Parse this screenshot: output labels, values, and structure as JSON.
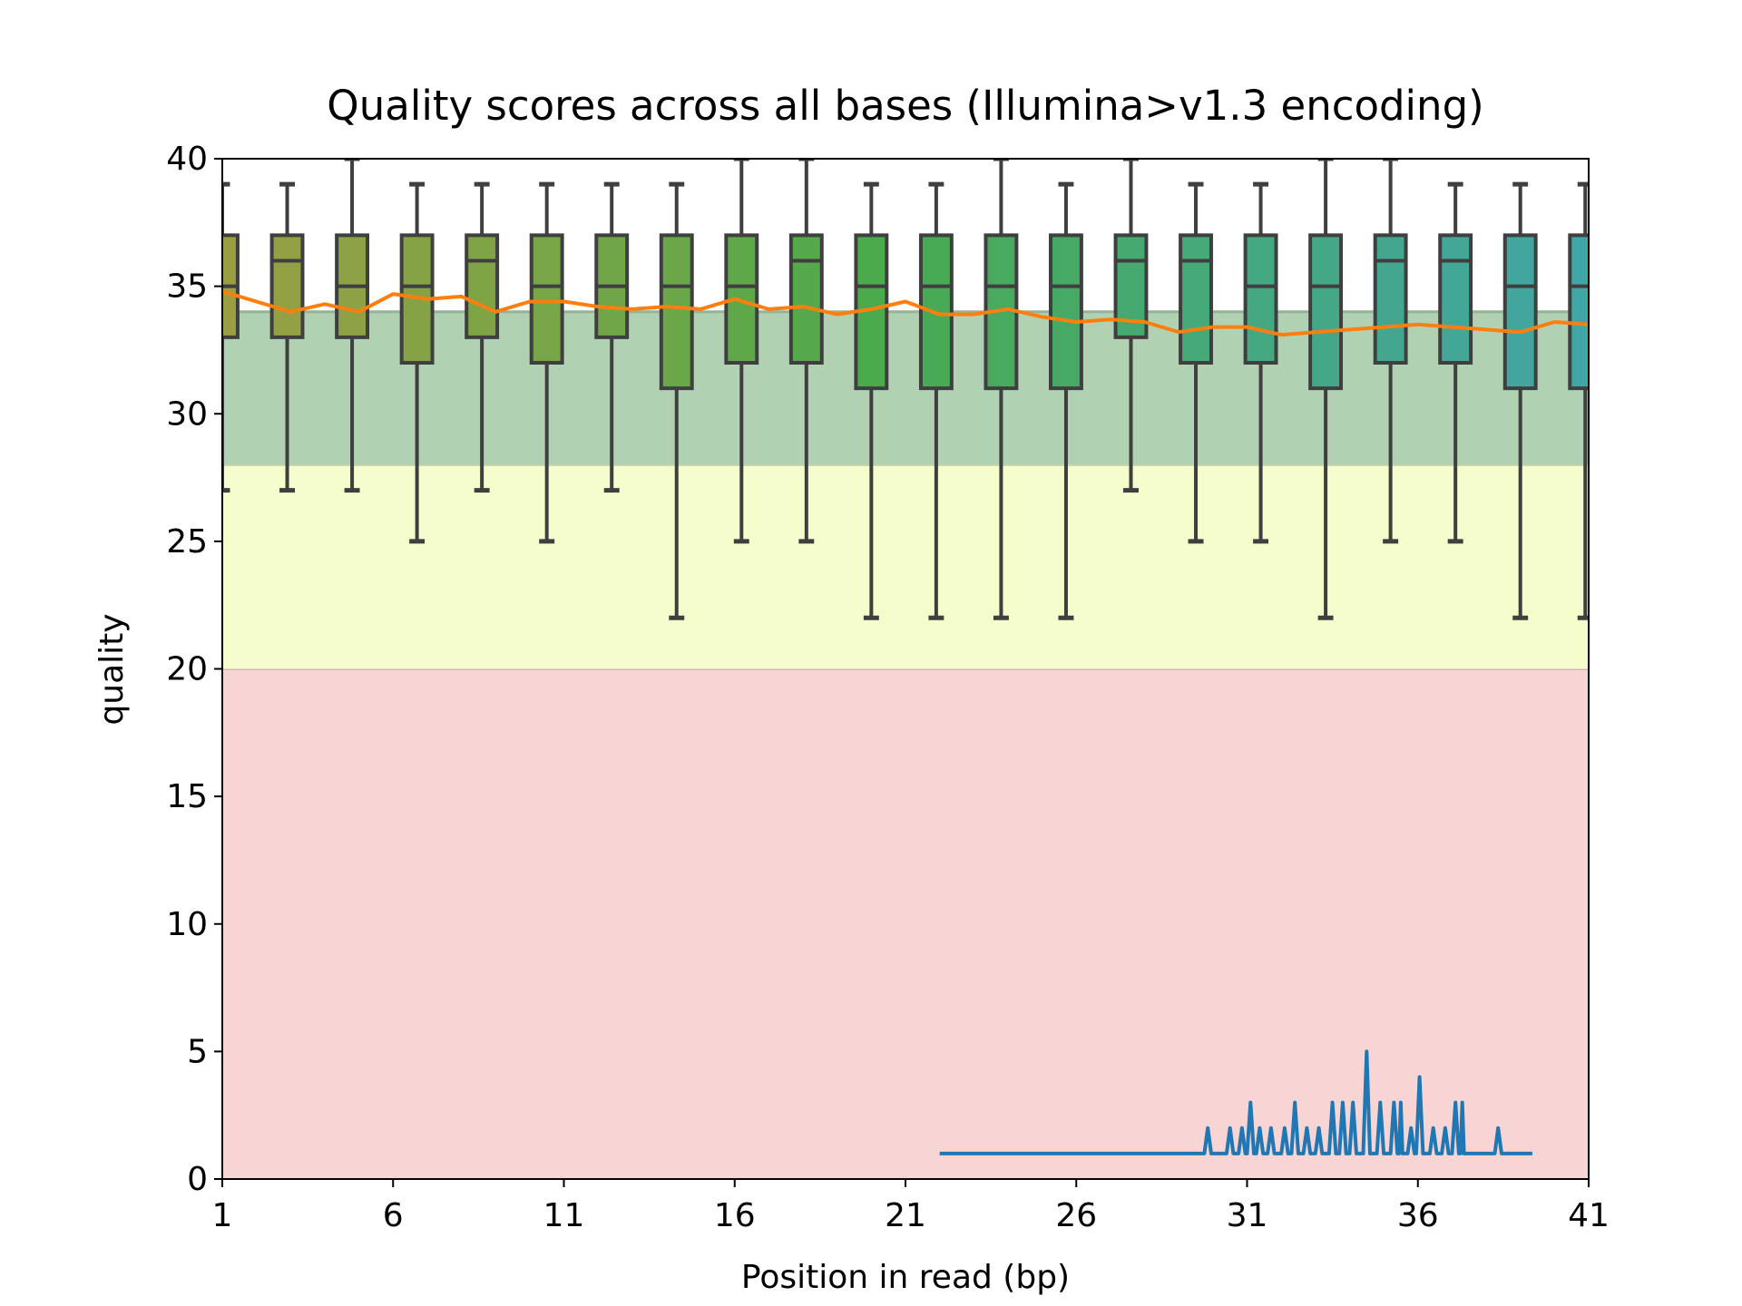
{
  "chart_data": {
    "type": "box",
    "title": "Quality scores across all bases (Illumina>v1.3 encoding)",
    "x_label": "Position in read (bp)",
    "y_label": "quality",
    "xlim": [
      1,
      41
    ],
    "xticks": [
      1,
      6,
      11,
      16,
      21,
      26,
      31,
      36,
      41
    ],
    "ylim": [
      0,
      40
    ],
    "yticks": [
      0,
      5,
      10,
      15,
      20,
      25,
      30,
      35,
      40
    ],
    "bands": [
      {
        "from": 0,
        "to": 20,
        "color": "#f7d5d5"
      },
      {
        "from": 20,
        "to": 28,
        "color": "#f4fdcb"
      },
      {
        "from": 28,
        "to": 34,
        "color": "#b1d1b3"
      }
    ],
    "boxes": {
      "positions": [
        1,
        2.9,
        4.8,
        6.7,
        8.6,
        10.5,
        12.4,
        14.3,
        16.2,
        18.1,
        20,
        21.9,
        23.8,
        25.7,
        27.6,
        29.5,
        31.4,
        33.3,
        35.2,
        37.1,
        39,
        40.9
      ],
      "whislo": [
        27,
        27,
        27,
        25,
        27,
        25,
        27,
        22,
        25,
        25,
        22,
        22,
        22,
        22,
        27,
        25,
        25,
        22,
        25,
        25,
        22,
        22
      ],
      "q1": [
        33,
        33,
        33,
        32,
        33,
        32,
        33,
        31,
        32,
        32,
        31,
        31,
        31,
        31,
        33,
        32,
        32,
        31,
        32,
        32,
        31,
        31
      ],
      "med": [
        35,
        36,
        35,
        35,
        36,
        35,
        35,
        35,
        35,
        36,
        35,
        35,
        35,
        35,
        36,
        36,
        35,
        35,
        36,
        36,
        35,
        35
      ],
      "q3": [
        37,
        37,
        37,
        37,
        37,
        37,
        37,
        37,
        37,
        37,
        37,
        37,
        37,
        37,
        37,
        37,
        37,
        37,
        37,
        37,
        37,
        37
      ],
      "whishi": [
        39,
        39,
        40,
        39,
        39,
        39,
        39,
        39,
        40,
        40,
        39,
        39,
        40,
        39,
        40,
        39,
        39,
        40,
        40,
        39,
        39,
        39
      ],
      "colors": [
        "#9aa042",
        "#93a043",
        "#8ca244",
        "#85a345",
        "#7ea446",
        "#77a547",
        "#70a648",
        "#69a749",
        "#5fa84a",
        "#55a94b",
        "#4aaa4c",
        "#48aa55",
        "#47aa5e",
        "#46aa66",
        "#46a96f",
        "#45a978",
        "#44a880",
        "#44a888",
        "#43a790",
        "#43a798",
        "#42a69f",
        "#42a6a6"
      ]
    },
    "mean_line": {
      "color": "#ff7f0e",
      "x": [
        1,
        2,
        3,
        4,
        5,
        6,
        7,
        8,
        9,
        10,
        11,
        12,
        13,
        14,
        15,
        16,
        17,
        18,
        19,
        20,
        21,
        22,
        23,
        24,
        25,
        26,
        27,
        28,
        29,
        30,
        31,
        32,
        33,
        34,
        35,
        36,
        37,
        38,
        39,
        40,
        41
      ],
      "values": [
        34.8,
        34.4,
        34.0,
        34.3,
        34.0,
        34.7,
        34.5,
        34.6,
        34.0,
        34.4,
        34.4,
        34.2,
        34.1,
        34.2,
        34.1,
        34.5,
        34.1,
        34.2,
        33.9,
        34.1,
        34.4,
        33.9,
        33.9,
        34.1,
        33.8,
        33.6,
        33.7,
        33.6,
        33.2,
        33.4,
        33.4,
        33.1,
        33.2,
        33.3,
        33.4,
        33.5,
        33.4,
        33.3,
        33.2,
        33.6,
        33.5
      ]
    },
    "count_line": {
      "color": "#1f77b4",
      "x": [
        22,
        29.75,
        29.85,
        29.95,
        30.4,
        30.5,
        30.6,
        30.75,
        30.85,
        30.95,
        31.0,
        31.1,
        31.2,
        31.27,
        31.37,
        31.47,
        31.6,
        31.7,
        31.8,
        32.0,
        32.1,
        32.2,
        32.3,
        32.4,
        32.5,
        32.65,
        32.75,
        32.85,
        33.0,
        33.1,
        33.2,
        33.4,
        33.5,
        33.6,
        33.7,
        33.8,
        33.9,
        34.0,
        34.1,
        34.2,
        34.4,
        34.5,
        34.6,
        34.8,
        34.9,
        35.0,
        35.2,
        35.3,
        35.4,
        35.45,
        35.5,
        35.55,
        35.7,
        35.8,
        35.9,
        35.95,
        36.05,
        36.15,
        36.35,
        36.45,
        36.55,
        36.7,
        36.8,
        36.9,
        37.0,
        37.1,
        37.2,
        37.25,
        37.3,
        37.35,
        38.25,
        38.35,
        38.45,
        39.35
      ],
      "values": [
        1,
        1,
        2,
        1,
        1,
        2,
        1,
        1,
        2,
        1,
        1,
        3,
        1,
        1,
        2,
        1,
        1,
        2,
        1,
        1,
        2,
        1,
        1,
        3,
        1,
        1,
        2,
        1,
        1,
        2,
        1,
        1,
        3,
        1,
        1,
        3,
        1,
        1,
        3,
        1,
        1,
        5,
        1,
        1,
        3,
        1,
        1,
        3,
        1,
        1,
        3,
        1,
        1,
        2,
        1,
        1,
        4,
        1,
        1,
        2,
        1,
        1,
        2,
        1,
        1,
        3,
        1,
        1,
        3,
        1,
        1,
        2,
        1,
        1
      ]
    }
  }
}
